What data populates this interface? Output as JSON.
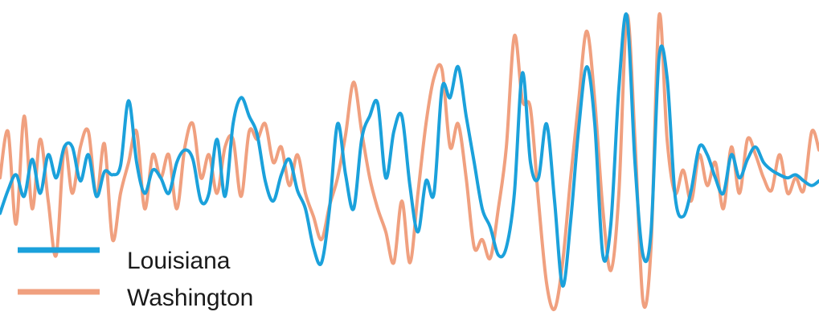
{
  "chart_data": {
    "type": "line",
    "title": "",
    "xlabel": "",
    "ylabel": "",
    "grid": false,
    "legend_position": "bottom-left",
    "x": [
      0,
      10,
      20,
      30,
      40,
      50,
      60,
      70,
      80,
      90,
      100,
      110,
      120,
      130,
      140,
      150,
      160,
      170,
      180,
      190,
      200,
      210,
      220,
      230,
      240,
      250,
      260,
      270,
      280,
      290,
      300,
      310,
      320,
      330,
      340,
      350,
      360,
      370,
      380,
      390,
      400,
      410,
      420,
      430,
      440,
      450,
      460,
      470,
      480,
      490,
      500,
      510,
      520,
      530,
      540,
      550,
      560,
      570,
      580,
      590,
      600,
      610,
      620,
      630,
      640,
      650,
      660,
      670,
      680,
      690,
      700,
      710,
      720,
      730,
      740,
      750,
      760,
      770,
      780,
      790,
      800,
      810,
      820,
      830,
      840,
      850,
      860,
      870,
      880,
      890,
      900,
      910,
      920,
      930,
      940,
      950,
      960,
      970,
      980,
      990,
      1000,
      1010,
      1019
    ],
    "ylim": [
      -1.0,
      1.0
    ],
    "series": [
      {
        "name": "Louisiana",
        "color": "#1BA1DB",
        "values": [
          -0.33,
          -0.18,
          -0.08,
          -0.22,
          0.02,
          -0.2,
          0.05,
          -0.1,
          0.1,
          0.1,
          -0.12,
          0.05,
          -0.22,
          -0.06,
          -0.08,
          -0.02,
          0.4,
          0.0,
          -0.2,
          -0.05,
          -0.1,
          -0.2,
          0.0,
          0.08,
          0.02,
          -0.25,
          -0.2,
          0.15,
          -0.22,
          0.25,
          0.42,
          0.3,
          0.18,
          -0.12,
          -0.25,
          -0.08,
          0.02,
          -0.18,
          -0.3,
          -0.55,
          -0.65,
          -0.3,
          0.25,
          -0.08,
          -0.3,
          0.15,
          0.3,
          0.38,
          -0.1,
          0.2,
          0.3,
          -0.15,
          -0.45,
          -0.12,
          -0.2,
          0.48,
          0.42,
          0.62,
          0.3,
          0.0,
          -0.3,
          -0.42,
          -0.6,
          -0.55,
          -0.2,
          0.58,
          0.0,
          -0.1,
          0.25,
          -0.25,
          -0.8,
          -0.38,
          0.22,
          0.62,
          0.25,
          -0.6,
          -0.4,
          0.48,
          0.95,
          0.0,
          -0.6,
          -0.45,
          0.68,
          0.55,
          -0.22,
          -0.35,
          -0.18,
          0.1,
          0.05,
          -0.1,
          -0.2,
          0.05,
          -0.1,
          0.02,
          0.1,
          0.0,
          -0.05,
          -0.08,
          -0.1,
          -0.08,
          -0.12,
          -0.15,
          -0.12
        ]
      },
      {
        "name": "Washington",
        "color": "#F0A07F",
        "values": [
          -0.1,
          0.2,
          -0.4,
          0.3,
          -0.3,
          0.15,
          -0.25,
          -0.6,
          0.1,
          -0.2,
          0.1,
          0.2,
          -0.22,
          0.12,
          -0.5,
          -0.2,
          0.0,
          0.2,
          -0.3,
          0.05,
          -0.1,
          0.05,
          -0.3,
          0.1,
          0.25,
          -0.1,
          0.05,
          -0.2,
          0.1,
          0.15,
          -0.22,
          0.2,
          0.15,
          0.25,
          0.0,
          0.1,
          -0.15,
          0.05,
          -0.2,
          -0.35,
          -0.5,
          -0.28,
          -0.1,
          0.18,
          0.52,
          0.2,
          -0.1,
          -0.3,
          -0.45,
          -0.65,
          -0.25,
          -0.65,
          -0.2,
          0.25,
          0.55,
          0.6,
          0.1,
          0.25,
          -0.1,
          -0.55,
          -0.5,
          -0.62,
          -0.3,
          0.1,
          0.82,
          0.4,
          0.35,
          -0.25,
          -0.78,
          -0.95,
          -0.65,
          -0.1,
          0.4,
          0.85,
          0.4,
          -0.3,
          -0.7,
          -0.2,
          0.95,
          0.15,
          -0.9,
          -0.55,
          0.95,
          0.15,
          -0.2,
          -0.05,
          -0.25,
          0.05,
          -0.15,
          0.0,
          -0.3,
          0.1,
          -0.2,
          0.15,
          0.05,
          -0.1,
          -0.18,
          0.05,
          -0.2,
          -0.1,
          -0.18,
          0.2,
          0.08
        ]
      }
    ],
    "legend": [
      {
        "label": "Louisiana",
        "color": "#1BA1DB"
      },
      {
        "label": "Washington",
        "color": "#F0A07F"
      }
    ]
  }
}
